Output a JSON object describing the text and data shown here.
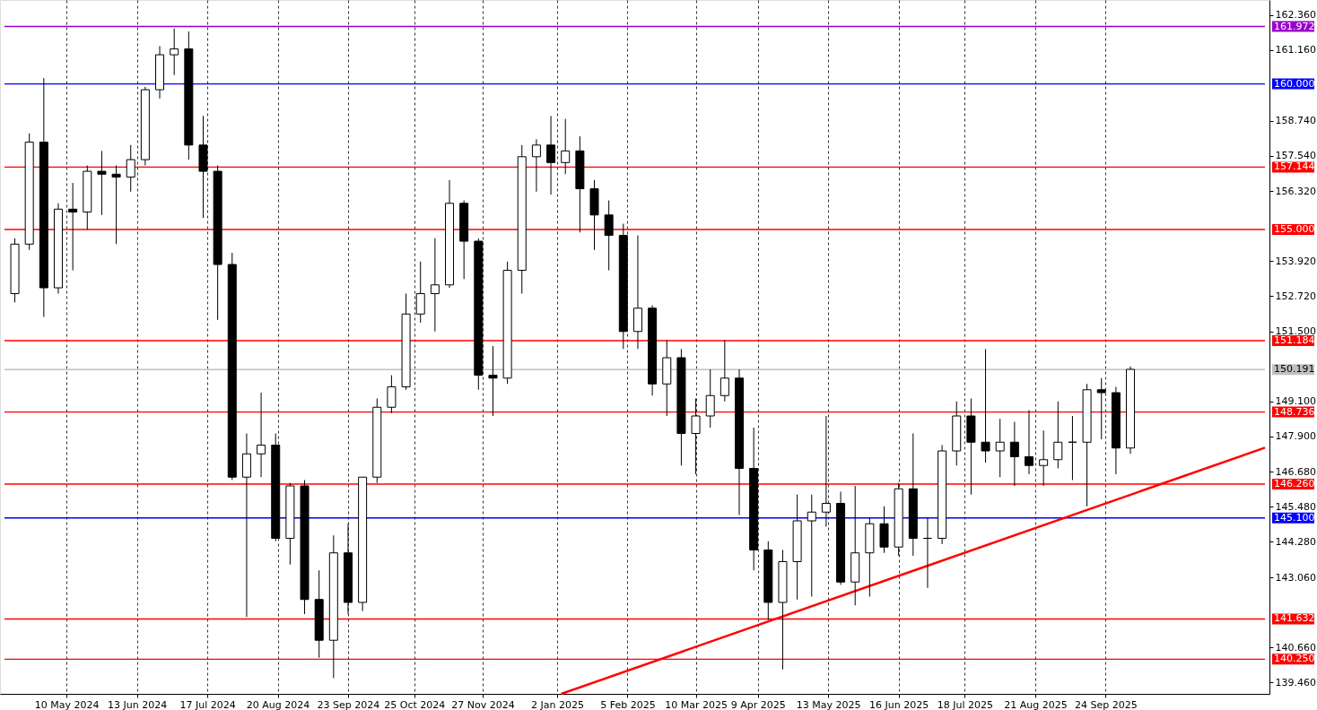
{
  "chart_data": {
    "type": "candlestick",
    "x": [
      "2024-04-15",
      "2024-04-22",
      "2024-04-29",
      "2024-05-06",
      "2024-05-13",
      "2024-05-20",
      "2024-05-27",
      "2024-06-03",
      "2024-06-10",
      "2024-06-17",
      "2024-06-24",
      "2024-07-01",
      "2024-07-08",
      "2024-07-15",
      "2024-07-22",
      "2024-07-29",
      "2024-08-05",
      "2024-08-12",
      "2024-08-19",
      "2024-08-26",
      "2024-09-02",
      "2024-09-09",
      "2024-09-16",
      "2024-09-23",
      "2024-09-30",
      "2024-10-07",
      "2024-10-14",
      "2024-10-21",
      "2024-10-28",
      "2024-11-04",
      "2024-11-11",
      "2024-11-18",
      "2024-11-25",
      "2024-12-02",
      "2024-12-09",
      "2024-12-16",
      "2024-12-23",
      "2024-12-30",
      "2025-01-06",
      "2025-01-13",
      "2025-01-20",
      "2025-01-27",
      "2025-02-03",
      "2025-02-10",
      "2025-02-17",
      "2025-02-24",
      "2025-03-03",
      "2025-03-10",
      "2025-03-17",
      "2025-03-24",
      "2025-03-31",
      "2025-04-07",
      "2025-04-14",
      "2025-04-21",
      "2025-04-28",
      "2025-05-05",
      "2025-05-12",
      "2025-05-19",
      "2025-05-26",
      "2025-06-02",
      "2025-06-09",
      "2025-06-16",
      "2025-06-23",
      "2025-06-30",
      "2025-07-07",
      "2025-07-14",
      "2025-07-21",
      "2025-07-28",
      "2025-08-04",
      "2025-08-11",
      "2025-08-18",
      "2025-08-25",
      "2025-09-01",
      "2025-09-08",
      "2025-09-15",
      "2025-09-22",
      "2025-09-29",
      "2025-10-06"
    ],
    "ohlc": [
      [
        152.8,
        154.7,
        152.5,
        154.5
      ],
      [
        154.5,
        158.3,
        154.3,
        158.0
      ],
      [
        158.0,
        160.2,
        152.0,
        153.0
      ],
      [
        153.0,
        155.9,
        152.8,
        155.7
      ],
      [
        155.7,
        156.6,
        153.6,
        155.6
      ],
      [
        155.6,
        157.2,
        155.0,
        157.0
      ],
      [
        157.0,
        157.7,
        155.5,
        156.9
      ],
      [
        156.9,
        157.2,
        154.5,
        156.8
      ],
      [
        156.8,
        157.9,
        156.3,
        157.4
      ],
      [
        157.4,
        159.9,
        157.2,
        159.8
      ],
      [
        159.8,
        161.3,
        159.5,
        161.0
      ],
      [
        161.0,
        161.9,
        160.3,
        161.2
      ],
      [
        161.2,
        161.8,
        157.4,
        157.9
      ],
      [
        157.9,
        158.9,
        155.4,
        157.0
      ],
      [
        157.0,
        157.2,
        151.9,
        153.8
      ],
      [
        153.8,
        154.2,
        146.4,
        146.5
      ],
      [
        146.5,
        148.0,
        141.7,
        147.3
      ],
      [
        147.3,
        149.4,
        146.5,
        147.6
      ],
      [
        147.6,
        148.0,
        144.3,
        144.4
      ],
      [
        144.4,
        146.3,
        143.5,
        146.2
      ],
      [
        146.2,
        146.4,
        141.8,
        142.3
      ],
      [
        142.3,
        143.3,
        140.3,
        140.9
      ],
      [
        140.9,
        144.5,
        139.6,
        143.9
      ],
      [
        143.9,
        144.9,
        141.8,
        142.2
      ],
      [
        142.2,
        146.5,
        141.9,
        146.5
      ],
      [
        146.5,
        149.2,
        146.3,
        148.9
      ],
      [
        148.9,
        150.0,
        148.7,
        149.6
      ],
      [
        149.6,
        152.8,
        149.5,
        152.1
      ],
      [
        152.1,
        153.9,
        151.8,
        152.8
      ],
      [
        152.8,
        154.7,
        151.5,
        153.1
      ],
      [
        153.1,
        156.7,
        153.0,
        155.9
      ],
      [
        155.9,
        156.0,
        153.3,
        154.6
      ],
      [
        154.6,
        154.7,
        149.5,
        150.0
      ],
      [
        150.0,
        151.0,
        148.6,
        149.9
      ],
      [
        149.9,
        153.9,
        149.7,
        153.6
      ],
      [
        153.6,
        157.9,
        152.8,
        157.5
      ],
      [
        157.5,
        158.1,
        156.3,
        157.9
      ],
      [
        157.9,
        158.9,
        156.2,
        157.3
      ],
      [
        157.3,
        158.8,
        156.9,
        157.7
      ],
      [
        157.7,
        158.2,
        154.9,
        156.4
      ],
      [
        156.4,
        156.7,
        154.3,
        155.5
      ],
      [
        155.5,
        156.0,
        153.6,
        154.8
      ],
      [
        154.8,
        155.2,
        150.9,
        151.5
      ],
      [
        151.5,
        154.8,
        150.9,
        152.3
      ],
      [
        152.3,
        152.4,
        149.3,
        149.7
      ],
      [
        149.7,
        151.2,
        148.6,
        150.6
      ],
      [
        150.6,
        150.9,
        146.9,
        148.0
      ],
      [
        148.0,
        149.2,
        146.6,
        148.6
      ],
      [
        148.6,
        150.2,
        148.2,
        149.3
      ],
      [
        149.3,
        151.2,
        149.1,
        149.9
      ],
      [
        149.9,
        150.2,
        145.2,
        146.8
      ],
      [
        146.8,
        148.2,
        143.3,
        144.0
      ],
      [
        144.0,
        144.3,
        141.6,
        142.2
      ],
      [
        142.2,
        144.0,
        139.9,
        143.6
      ],
      [
        143.6,
        145.9,
        142.3,
        145.0
      ],
      [
        145.0,
        145.9,
        142.4,
        145.3
      ],
      [
        145.3,
        148.6,
        144.8,
        145.6
      ],
      [
        145.6,
        146.0,
        142.8,
        142.9
      ],
      [
        142.9,
        146.2,
        142.1,
        143.9
      ],
      [
        143.9,
        145.1,
        142.4,
        144.9
      ],
      [
        144.9,
        145.5,
        143.9,
        144.1
      ],
      [
        144.1,
        146.3,
        143.8,
        146.1
      ],
      [
        146.1,
        148.0,
        143.8,
        144.4
      ],
      [
        144.4,
        145.1,
        142.7,
        144.4
      ],
      [
        144.4,
        147.6,
        144.2,
        147.4
      ],
      [
        147.4,
        149.1,
        146.9,
        148.6
      ],
      [
        148.6,
        149.2,
        145.9,
        147.7
      ],
      [
        147.7,
        150.9,
        147.0,
        147.4
      ],
      [
        147.4,
        148.5,
        146.5,
        147.7
      ],
      [
        147.7,
        148.4,
        146.2,
        147.2
      ],
      [
        147.2,
        148.8,
        146.6,
        146.9
      ],
      [
        146.9,
        148.1,
        146.2,
        147.1
      ],
      [
        147.1,
        149.1,
        146.8,
        147.7
      ],
      [
        147.7,
        148.6,
        146.4,
        147.7
      ],
      [
        147.7,
        149.7,
        145.5,
        149.5
      ],
      [
        149.5,
        149.9,
        147.8,
        149.4
      ],
      [
        149.4,
        149.6,
        146.6,
        147.5
      ],
      [
        147.5,
        150.3,
        147.3,
        150.2
      ]
    ],
    "series": [
      {
        "type": "line",
        "color": "#ff0000",
        "x": [
          "2025-01-04",
          "2025-12-10"
        ],
        "values": [
          139.06,
          147.51
        ]
      }
    ],
    "xlim": [
      "2024-04-10",
      "2025-12-10"
    ],
    "xticks": [
      {
        "value": "2024-05-10",
        "label": "10 May 2024"
      },
      {
        "value": "2024-06-13",
        "label": "13 Jun 2024"
      },
      {
        "value": "2024-07-17",
        "label": "17 Jul 2024"
      },
      {
        "value": "2024-08-20",
        "label": "20 Aug 2024"
      },
      {
        "value": "2024-09-23",
        "label": "23 Sep 2024"
      },
      {
        "value": "2024-10-25",
        "label": "25 Oct 2024"
      },
      {
        "value": "2024-11-27",
        "label": "27 Nov 2024"
      },
      {
        "value": "2025-01-02",
        "label": "2 Jan 2025"
      },
      {
        "value": "2025-02-05",
        "label": "5 Feb 2025"
      },
      {
        "value": "2025-03-10",
        "label": "10 Mar 2025"
      },
      {
        "value": "2025-04-09",
        "label": "9 Apr 2025"
      },
      {
        "value": "2025-05-13",
        "label": "13 May 2025"
      },
      {
        "value": "2025-06-16",
        "label": "16 Jun 2025"
      },
      {
        "value": "2025-07-18",
        "label": "18 Jul 2025"
      },
      {
        "value": "2025-08-21",
        "label": "21 Aug 2025"
      },
      {
        "value": "2025-09-24",
        "label": "24 Sep 2025"
      }
    ],
    "ylim": [
      139.06,
      162.88
    ],
    "yticks": [
      {
        "value": 162.36,
        "label": "162.360"
      },
      {
        "value": 161.16,
        "label": "161.160"
      },
      {
        "value": 158.74,
        "label": "158.740"
      },
      {
        "value": 157.54,
        "label": "157.540"
      },
      {
        "value": 156.32,
        "label": "156.320"
      },
      {
        "value": 153.92,
        "label": "153.920"
      },
      {
        "value": 152.72,
        "label": "152.720"
      },
      {
        "value": 151.5,
        "label": "151.500"
      },
      {
        "value": 149.1,
        "label": "149.100"
      },
      {
        "value": 147.9,
        "label": "147.900"
      },
      {
        "value": 146.68,
        "label": "146.680"
      },
      {
        "value": 145.48,
        "label": "145.480"
      },
      {
        "value": 144.28,
        "label": "144.280"
      },
      {
        "value": 143.06,
        "label": "143.060"
      },
      {
        "value": 140.66,
        "label": "140.660"
      },
      {
        "value": 139.46,
        "label": "139.460"
      }
    ],
    "ref_lines": [
      {
        "axis": "y",
        "value": 161.972,
        "label": "161.972",
        "color": "#9900cc"
      },
      {
        "axis": "y",
        "value": 160.0,
        "label": "160.000",
        "color": "#0000ff"
      },
      {
        "axis": "y",
        "value": 157.144,
        "label": "157.144",
        "color": "#ff0000"
      },
      {
        "axis": "y",
        "value": 155.0,
        "label": "155.000",
        "color": "#ff0000"
      },
      {
        "axis": "y",
        "value": 151.184,
        "label": "151.184",
        "color": "#ff0000"
      },
      {
        "axis": "y",
        "value": 150.191,
        "label": "150.191",
        "color": "#c0c0c0"
      },
      {
        "axis": "y",
        "value": 148.736,
        "label": "148.736",
        "color": "#ff0000"
      },
      {
        "axis": "y",
        "value": 146.26,
        "label": "146.260",
        "color": "#ff0000"
      },
      {
        "axis": "y",
        "value": 145.1,
        "label": "145.100",
        "color": "#0000ff"
      },
      {
        "axis": "y",
        "value": 141.632,
        "label": "141.632",
        "color": "#ff0000"
      },
      {
        "axis": "y",
        "value": 140.25,
        "label": "140.250",
        "color": "#ff0000"
      }
    ],
    "grid": "x"
  }
}
